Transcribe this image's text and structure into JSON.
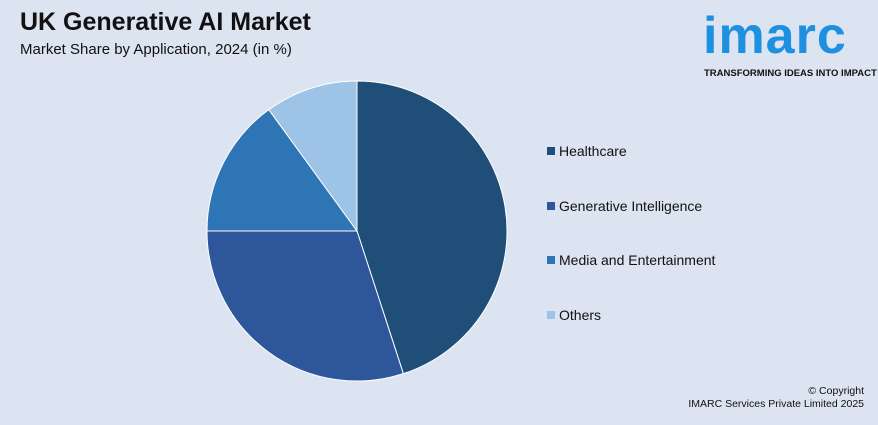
{
  "header": {
    "title": "UK Generative AI Market",
    "subtitle": "Market Share by Application, 2024 (in %)"
  },
  "logo": {
    "name": "imarc",
    "tagline": "TRANSFORMING IDEAS INTO IMPACT",
    "color": "#1e90e0"
  },
  "chart_data": {
    "type": "pie",
    "title": "UK Generative AI Market",
    "subtitle": "Market Share by Application, 2024 (in %)",
    "categories": [
      "Healthcare",
      "Generative Intelligence",
      "Media and Entertainment",
      "Others"
    ],
    "values": [
      45,
      30,
      15,
      10
    ],
    "colors": [
      "#1f4e79",
      "#2e569b",
      "#2e75b6",
      "#9dc3e6"
    ],
    "legend_position": "right"
  },
  "footer": {
    "copyright_line1": "© Copyright",
    "copyright_line2": "IMARC Services Private Limited 2025"
  }
}
